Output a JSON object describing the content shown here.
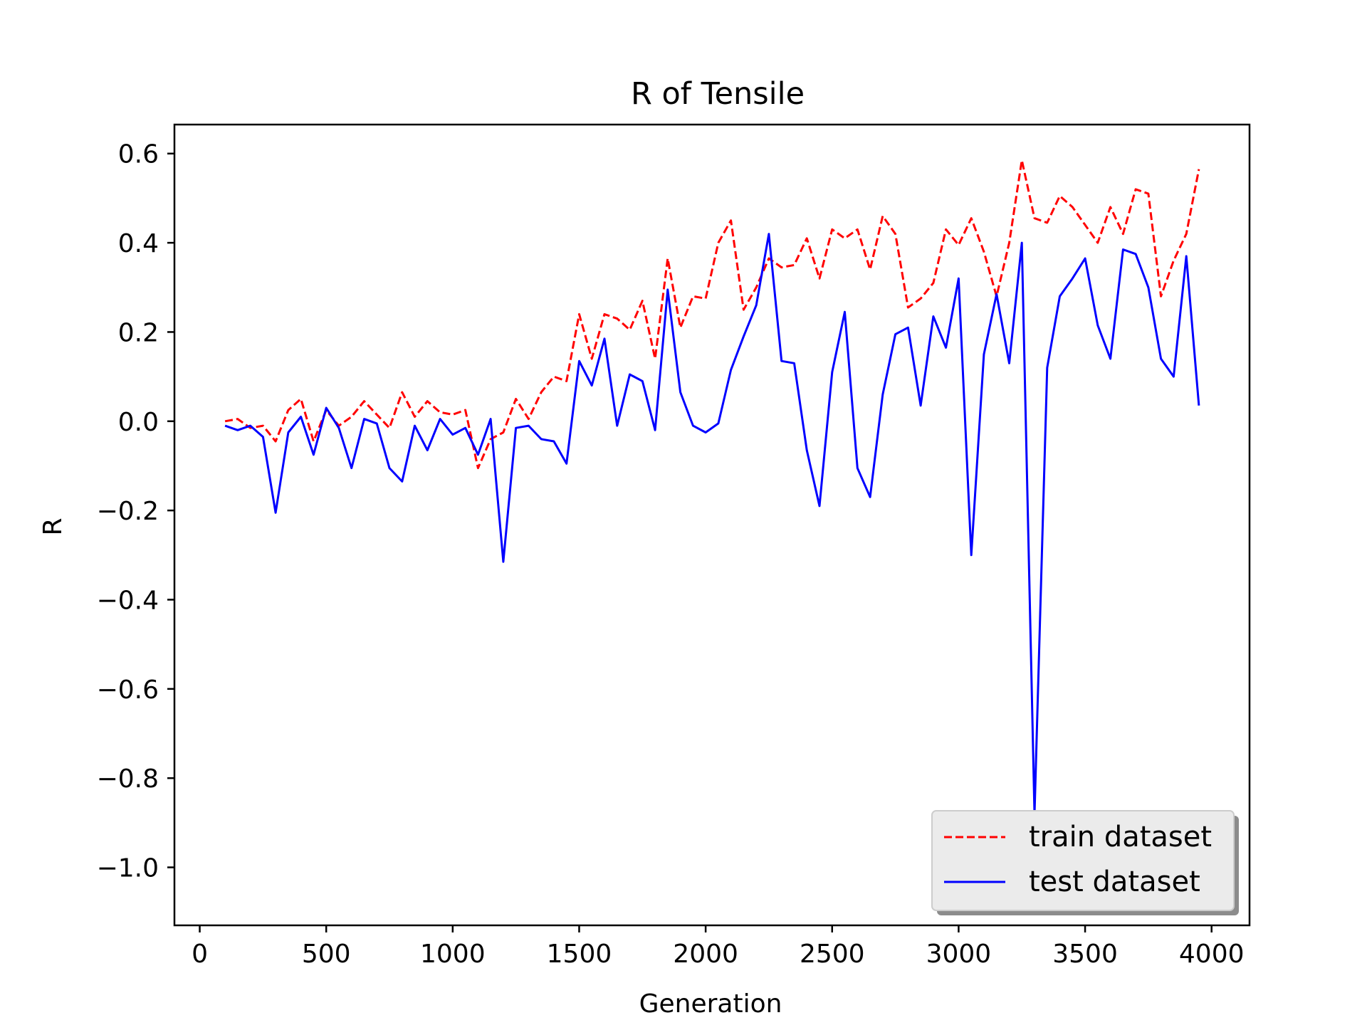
{
  "chart_data": {
    "type": "line",
    "title": "R of Tensile",
    "xlabel": "Generation",
    "ylabel": "R",
    "xlim": [
      -100,
      4150
    ],
    "ylim": [
      -1.13,
      0.665
    ],
    "xticks": [
      0,
      500,
      1000,
      1500,
      2000,
      2500,
      3000,
      3500,
      4000
    ],
    "xtick_labels": [
      "0",
      "500",
      "1000",
      "1500",
      "2000",
      "2500",
      "3000",
      "3500",
      "4000"
    ],
    "yticks": [
      0.6,
      0.4,
      0.2,
      0.0,
      -0.2,
      -0.4,
      -0.6,
      -0.8,
      -1.0
    ],
    "ytick_labels": [
      "0.6",
      "0.4",
      "0.2",
      "0.0",
      "−0.2",
      "−0.4",
      "−0.6",
      "−0.8",
      "−1.0"
    ],
    "grid": false,
    "legend_position": "lower-right",
    "series": [
      {
        "name": "train dataset",
        "color": "#ff0000",
        "style": "dashed",
        "x": [
          100,
          150,
          200,
          250,
          300,
          350,
          400,
          450,
          500,
          550,
          600,
          650,
          700,
          750,
          800,
          850,
          900,
          950,
          1000,
          1050,
          1100,
          1150,
          1200,
          1250,
          1300,
          1350,
          1400,
          1450,
          1500,
          1550,
          1600,
          1650,
          1700,
          1750,
          1800,
          1850,
          1900,
          1950,
          2000,
          2050,
          2100,
          2150,
          2200,
          2250,
          2300,
          2350,
          2400,
          2450,
          2500,
          2550,
          2600,
          2650,
          2700,
          2750,
          2800,
          2850,
          2900,
          2950,
          3000,
          3050,
          3100,
          3150,
          3200,
          3250,
          3300,
          3350,
          3400,
          3450,
          3500,
          3550,
          3600,
          3650,
          3700,
          3750,
          3800,
          3850,
          3900,
          3950
        ],
        "y": [
          0.0,
          0.005,
          -0.015,
          -0.01,
          -0.045,
          0.025,
          0.05,
          -0.045,
          0.025,
          -0.01,
          0.01,
          0.045,
          0.015,
          -0.015,
          0.065,
          0.01,
          0.045,
          0.02,
          0.015,
          0.025,
          -0.105,
          -0.04,
          -0.025,
          0.05,
          0.005,
          0.065,
          0.1,
          0.09,
          0.24,
          0.14,
          0.24,
          0.23,
          0.205,
          0.27,
          0.14,
          0.365,
          0.21,
          0.28,
          0.275,
          0.4,
          0.45,
          0.25,
          0.3,
          0.365,
          0.345,
          0.35,
          0.41,
          0.32,
          0.43,
          0.41,
          0.43,
          0.34,
          0.46,
          0.42,
          0.255,
          0.275,
          0.31,
          0.43,
          0.395,
          0.455,
          0.38,
          0.28,
          0.4,
          0.585,
          0.455,
          0.445,
          0.505,
          0.48,
          0.44,
          0.4,
          0.48,
          0.42,
          0.52,
          0.51,
          0.28,
          0.36,
          0.42,
          0.565
        ]
      },
      {
        "name": "test dataset",
        "color": "#0000ff",
        "style": "solid",
        "x": [
          100,
          150,
          200,
          250,
          300,
          350,
          400,
          450,
          500,
          550,
          600,
          650,
          700,
          750,
          800,
          850,
          900,
          950,
          1000,
          1050,
          1100,
          1150,
          1200,
          1250,
          1300,
          1350,
          1400,
          1450,
          1500,
          1550,
          1600,
          1650,
          1700,
          1750,
          1800,
          1850,
          1900,
          1950,
          2000,
          2050,
          2100,
          2150,
          2200,
          2250,
          2300,
          2350,
          2400,
          2450,
          2500,
          2550,
          2600,
          2650,
          2700,
          2750,
          2800,
          2850,
          2900,
          2950,
          3000,
          3050,
          3100,
          3150,
          3200,
          3250,
          3300,
          3350,
          3400,
          3450,
          3500,
          3550,
          3600,
          3650,
          3700,
          3750,
          3800,
          3850,
          3900,
          3950
        ],
        "y": [
          -0.01,
          -0.02,
          -0.01,
          -0.035,
          -0.205,
          -0.025,
          0.01,
          -0.075,
          0.03,
          -0.015,
          -0.105,
          0.005,
          -0.005,
          -0.105,
          -0.135,
          -0.01,
          -0.065,
          0.005,
          -0.03,
          -0.015,
          -0.075,
          0.005,
          -0.315,
          -0.015,
          -0.01,
          -0.04,
          -0.045,
          -0.095,
          0.135,
          0.08,
          0.185,
          -0.01,
          0.105,
          0.09,
          -0.02,
          0.295,
          0.065,
          -0.01,
          -0.025,
          -0.005,
          0.115,
          0.19,
          0.26,
          0.42,
          0.135,
          0.13,
          -0.065,
          -0.19,
          0.11,
          0.245,
          -0.105,
          -0.17,
          0.06,
          0.195,
          0.21,
          0.035,
          0.235,
          0.165,
          0.32,
          -0.3,
          0.15,
          0.285,
          0.13,
          0.4,
          -0.88,
          0.12,
          0.28,
          0.32,
          0.365,
          0.215,
          0.14,
          0.385,
          0.375,
          0.3,
          0.14,
          0.1,
          0.37,
          0.035
        ]
      }
    ]
  }
}
